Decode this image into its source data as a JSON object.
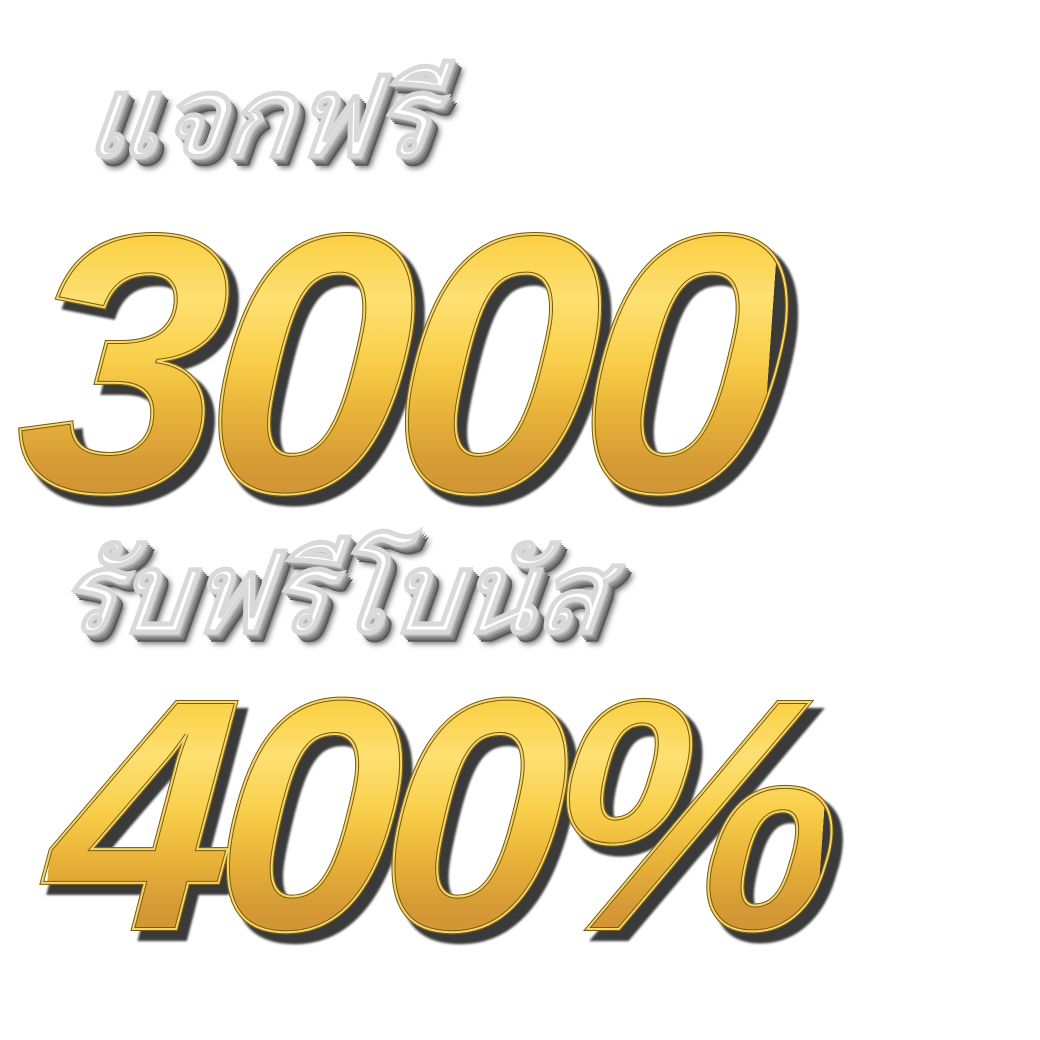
{
  "headline_top": "แจกฟรี",
  "amount": "3000",
  "headline_middle": "รับฟรีโบนัส",
  "bonus": "400%",
  "colors": {
    "gold_light": "#fde072",
    "gold_mid": "#f6c32a",
    "gold_dark": "#c98b34",
    "outline": "#7a5a12",
    "silver": "#ffffff",
    "shadow": "#3a3a3a"
  }
}
